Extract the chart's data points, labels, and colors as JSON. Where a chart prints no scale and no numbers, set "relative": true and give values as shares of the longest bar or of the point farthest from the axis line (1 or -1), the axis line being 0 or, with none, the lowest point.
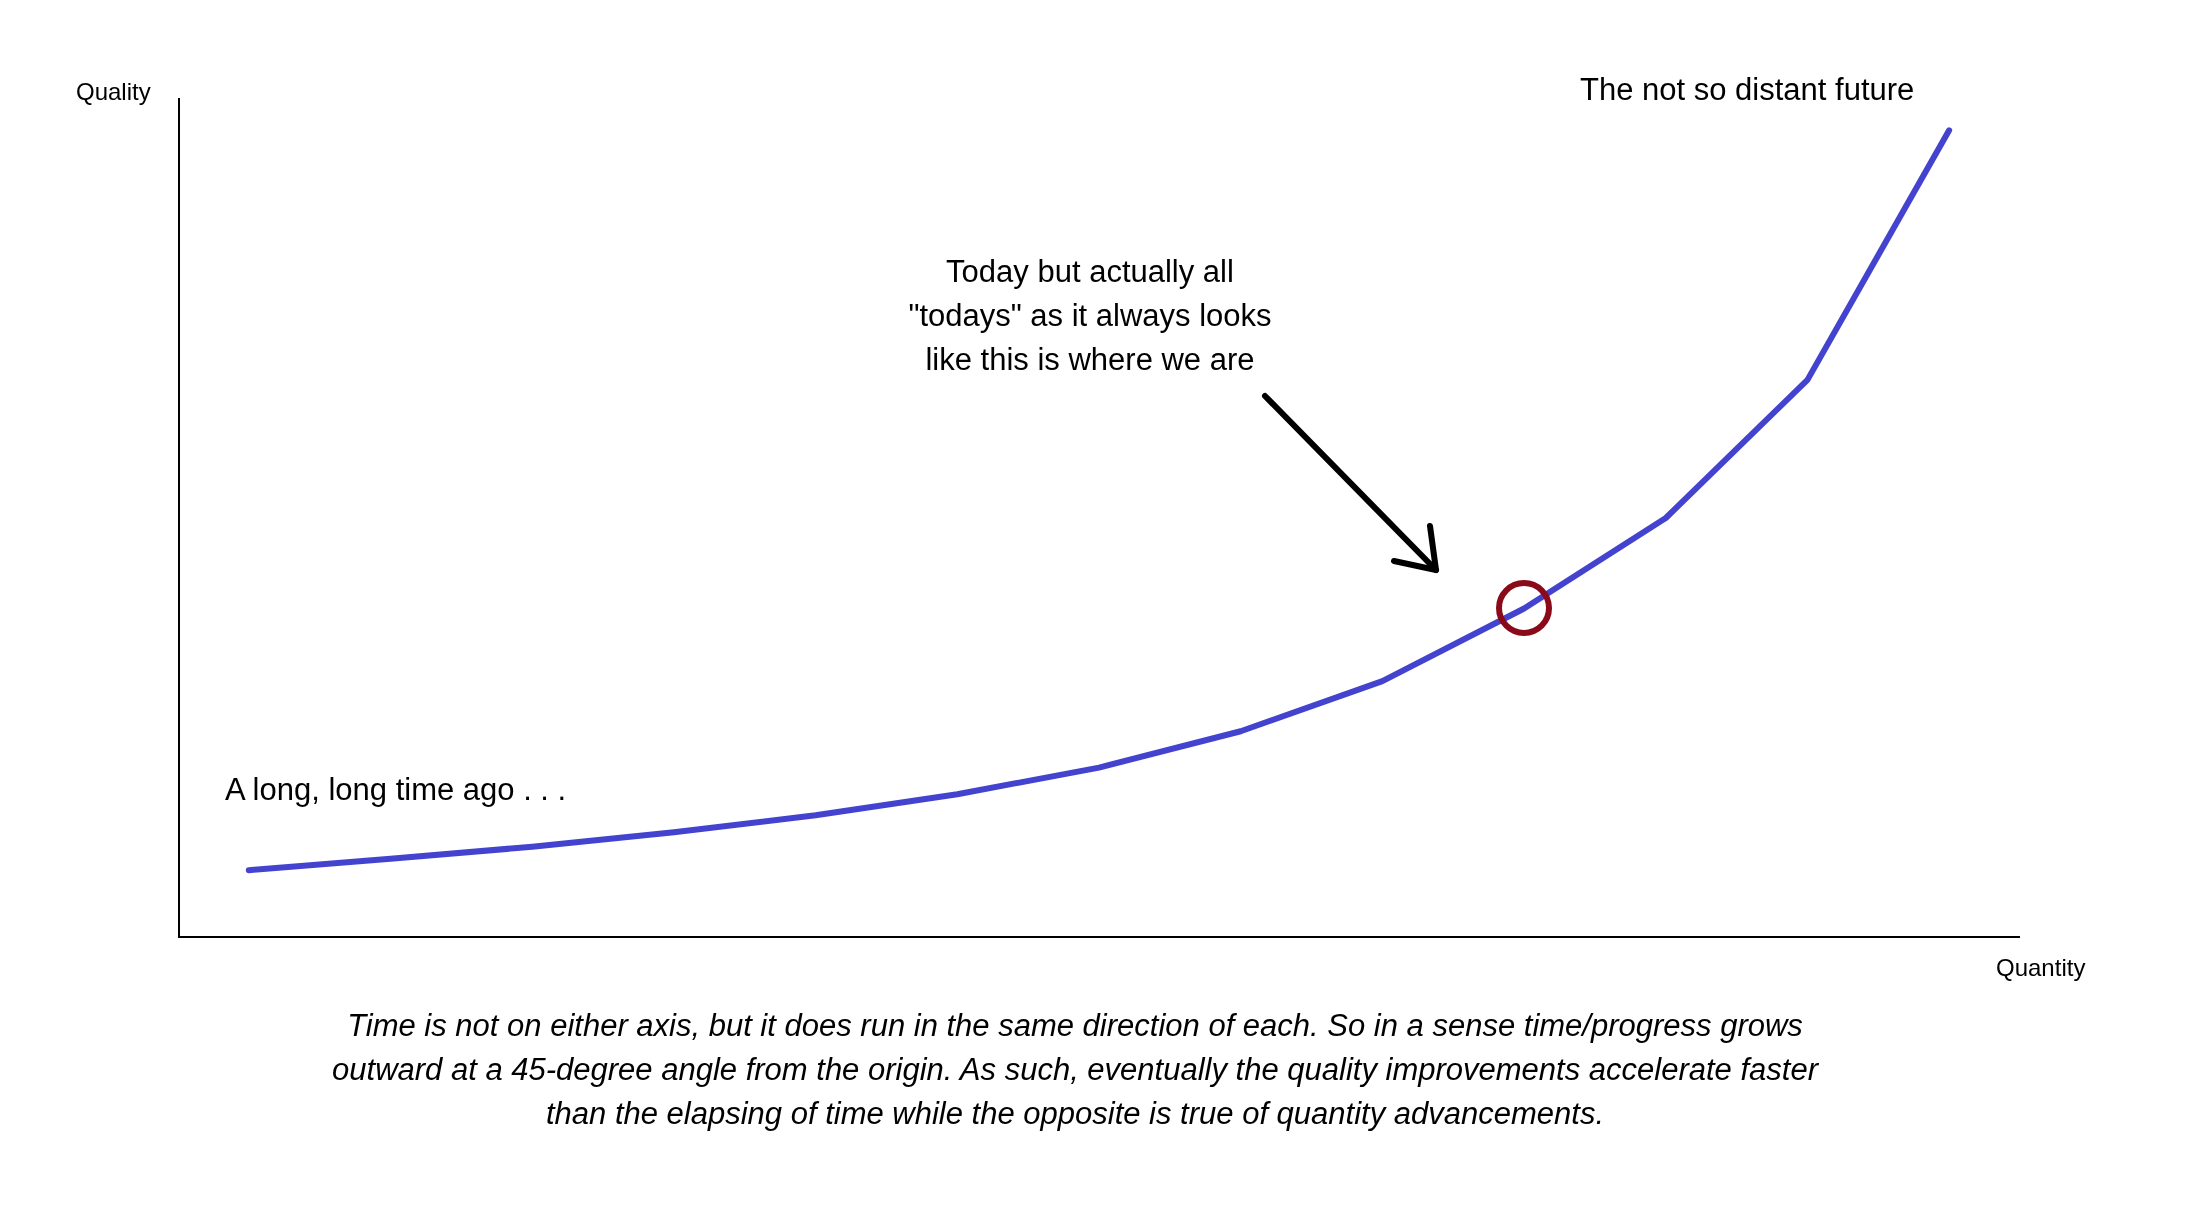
{
  "chart_data": {
    "type": "line",
    "relative": true,
    "xlabel": "Quantity",
    "ylabel": "Quality",
    "categories": [
      null,
      null,
      null,
      null,
      null,
      null,
      null,
      null,
      null,
      null,
      null,
      null,
      null
    ],
    "series": [
      {
        "color": "#4343cf",
        "values": [
          0.084,
          0.098,
          0.113,
          0.131,
          0.152,
          0.178,
          0.211,
          0.256,
          0.318,
          0.408,
          0.52,
          0.691,
          1
        ]
      }
    ],
    "annotations": [
      "A long, long time ago . . .",
      "The not so distant future",
      "Today but actually all \"todays\" as it always looks like this is where we are",
      "Time is not on either axis, but it does run in the same direction of each. So in a sense time/progress grows outward at a 45-degree angle from the origin. As such, eventually the quality improvements accelerate faster than the elapsing of time while the opposite is true of quantity advancements."
    ],
    "grid": false,
    "legend": false,
    "marker": "none"
  }
}
